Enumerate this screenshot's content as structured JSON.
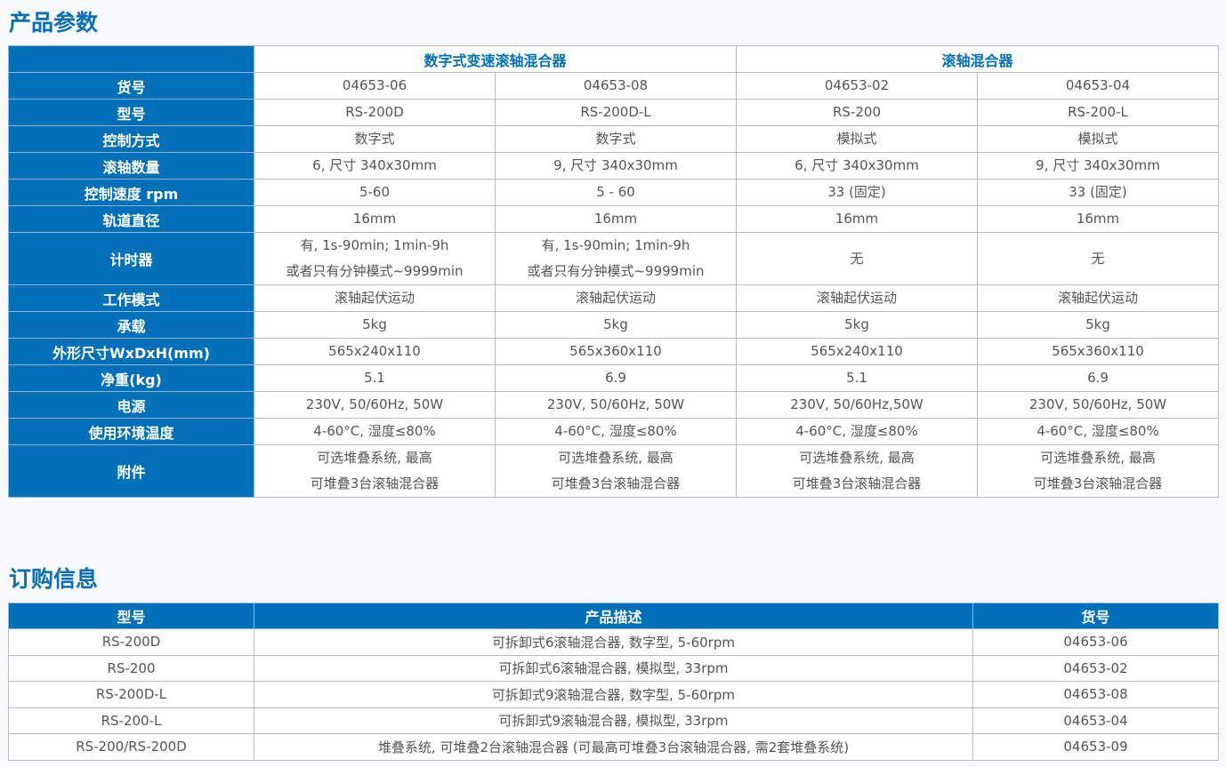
{
  "params": {
    "title": "产品参数",
    "groups": [
      "数字式变速滚轴混合器",
      "滚轴混合器"
    ],
    "rows": [
      {
        "label": "货号",
        "values": [
          "04653-06",
          "04653-08",
          "04653-02",
          "04653-04"
        ]
      },
      {
        "label": "型号",
        "values": [
          "RS-200D",
          "RS-200D-L",
          "RS-200",
          "RS-200-L"
        ]
      },
      {
        "label": "控制方式",
        "values": [
          "数字式",
          "数字式",
          "模拟式",
          "模拟式"
        ]
      },
      {
        "label": "滚轴数量",
        "values": [
          "6, 尺寸 340x30mm",
          "9, 尺寸 340x30mm",
          "6, 尺寸 340x30mm",
          "9, 尺寸 340x30mm"
        ]
      },
      {
        "label": "控制速度 rpm",
        "values": [
          "5-60",
          "5 - 60",
          "33 (固定)",
          "33 (固定)"
        ]
      },
      {
        "label": "轨道直径",
        "values": [
          "16mm",
          "16mm",
          "16mm",
          "16mm"
        ]
      },
      {
        "label": "计时器",
        "values": [
          "有, 1s-90min; 1min-9h\n或者只有分钟模式~9999min",
          "有, 1s-90min; 1min-9h\n或者只有分钟模式~9999min",
          "无",
          "无"
        ]
      },
      {
        "label": "工作模式",
        "values": [
          "滚轴起伏运动",
          "滚轴起伏运动",
          "滚轴起伏运动",
          "滚轴起伏运动"
        ]
      },
      {
        "label": "承载",
        "values": [
          "5kg",
          "5kg",
          "5kg",
          "5kg"
        ]
      },
      {
        "label": "外形尺寸WxDxH(mm)",
        "values": [
          "565x240x110",
          "565x360x110",
          "565x240x110",
          "565x360x110"
        ]
      },
      {
        "label": "净重(kg)",
        "values": [
          "5.1",
          "6.9",
          "5.1",
          "6.9"
        ]
      },
      {
        "label": "电源",
        "values": [
          "230V, 50/60Hz, 50W",
          "230V, 50/60Hz, 50W",
          "230V, 50/60Hz,50W",
          "230V, 50/60Hz, 50W"
        ]
      },
      {
        "label": "使用环境温度",
        "values": [
          "4-60°C, 湿度≤80%",
          "4-60°C, 湿度≤80%",
          "4-60°C, 湿度≤80%",
          "4-60°C, 湿度≤80%"
        ]
      },
      {
        "label": "附件",
        "values": [
          "可选堆叠系统, 最高\n可堆叠3台滚轴混合器",
          "可选堆叠系统, 最高\n可堆叠3台滚轴混合器",
          "可选堆叠系统, 最高\n可堆叠3台滚轴混合器",
          "可选堆叠系统, 最高\n可堆叠3台滚轴混合器"
        ]
      }
    ]
  },
  "order": {
    "title": "订购信息",
    "headers": [
      "型号",
      "产品描述",
      "货号"
    ],
    "rows": [
      [
        "RS-200D",
        "可拆卸式6滚轴混合器, 数字型, 5-60rpm",
        "04653-06"
      ],
      [
        "RS-200",
        "可拆卸式6滚轴混合器, 模拟型, 33rpm",
        "04653-02"
      ],
      [
        "RS-200D-L",
        "可拆卸式9滚轴混合器, 数字型, 5-60rpm",
        "04653-08"
      ],
      [
        "RS-200-L",
        "可拆卸式9滚轴混合器, 模拟型, 33rpm",
        "04653-04"
      ],
      [
        "RS-200/RS-200D",
        "堆叠系统, 可堆叠2台滚轴混合器 (可最高可堆叠3台滚轴混合器, 需2套堆叠系统)",
        "04653-09"
      ]
    ]
  }
}
